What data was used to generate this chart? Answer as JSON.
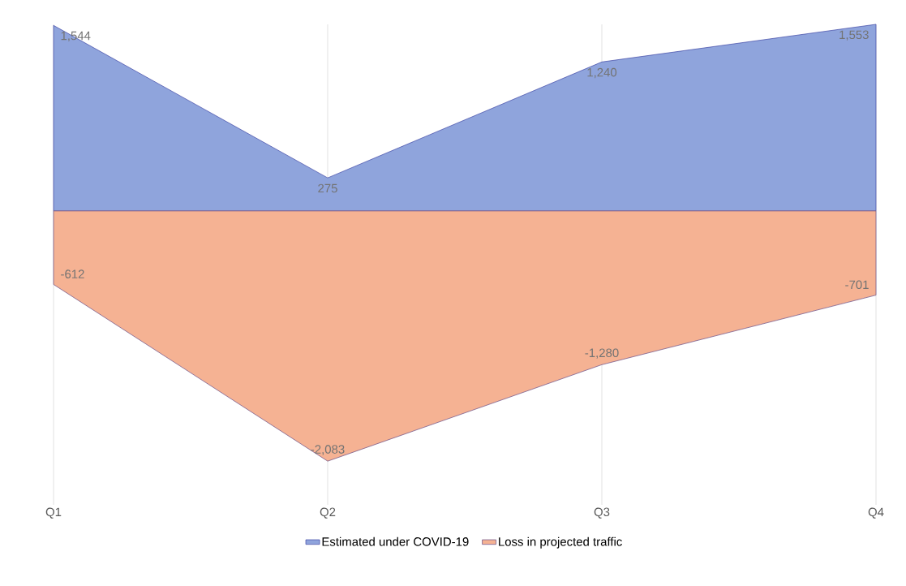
{
  "chart_data": {
    "type": "area",
    "categories": [
      "Q1",
      "Q2",
      "Q3",
      "Q4"
    ],
    "grid": "x",
    "legend": "bottom",
    "data_labels": true,
    "series": [
      {
        "name": "Estimated under COVID-19",
        "color": "#8fa4dc",
        "values": [
          1544,
          275,
          1240,
          1553
        ],
        "value_labels": [
          "1,544",
          "275",
          "1,240",
          "1,553"
        ]
      },
      {
        "name": "Loss in projected traffic",
        "color": "#f5b293",
        "values": [
          -612,
          -2083,
          -1280,
          -701
        ],
        "value_labels": [
          "-612",
          "-2,083",
          "-1,280",
          "-701"
        ]
      }
    ]
  }
}
